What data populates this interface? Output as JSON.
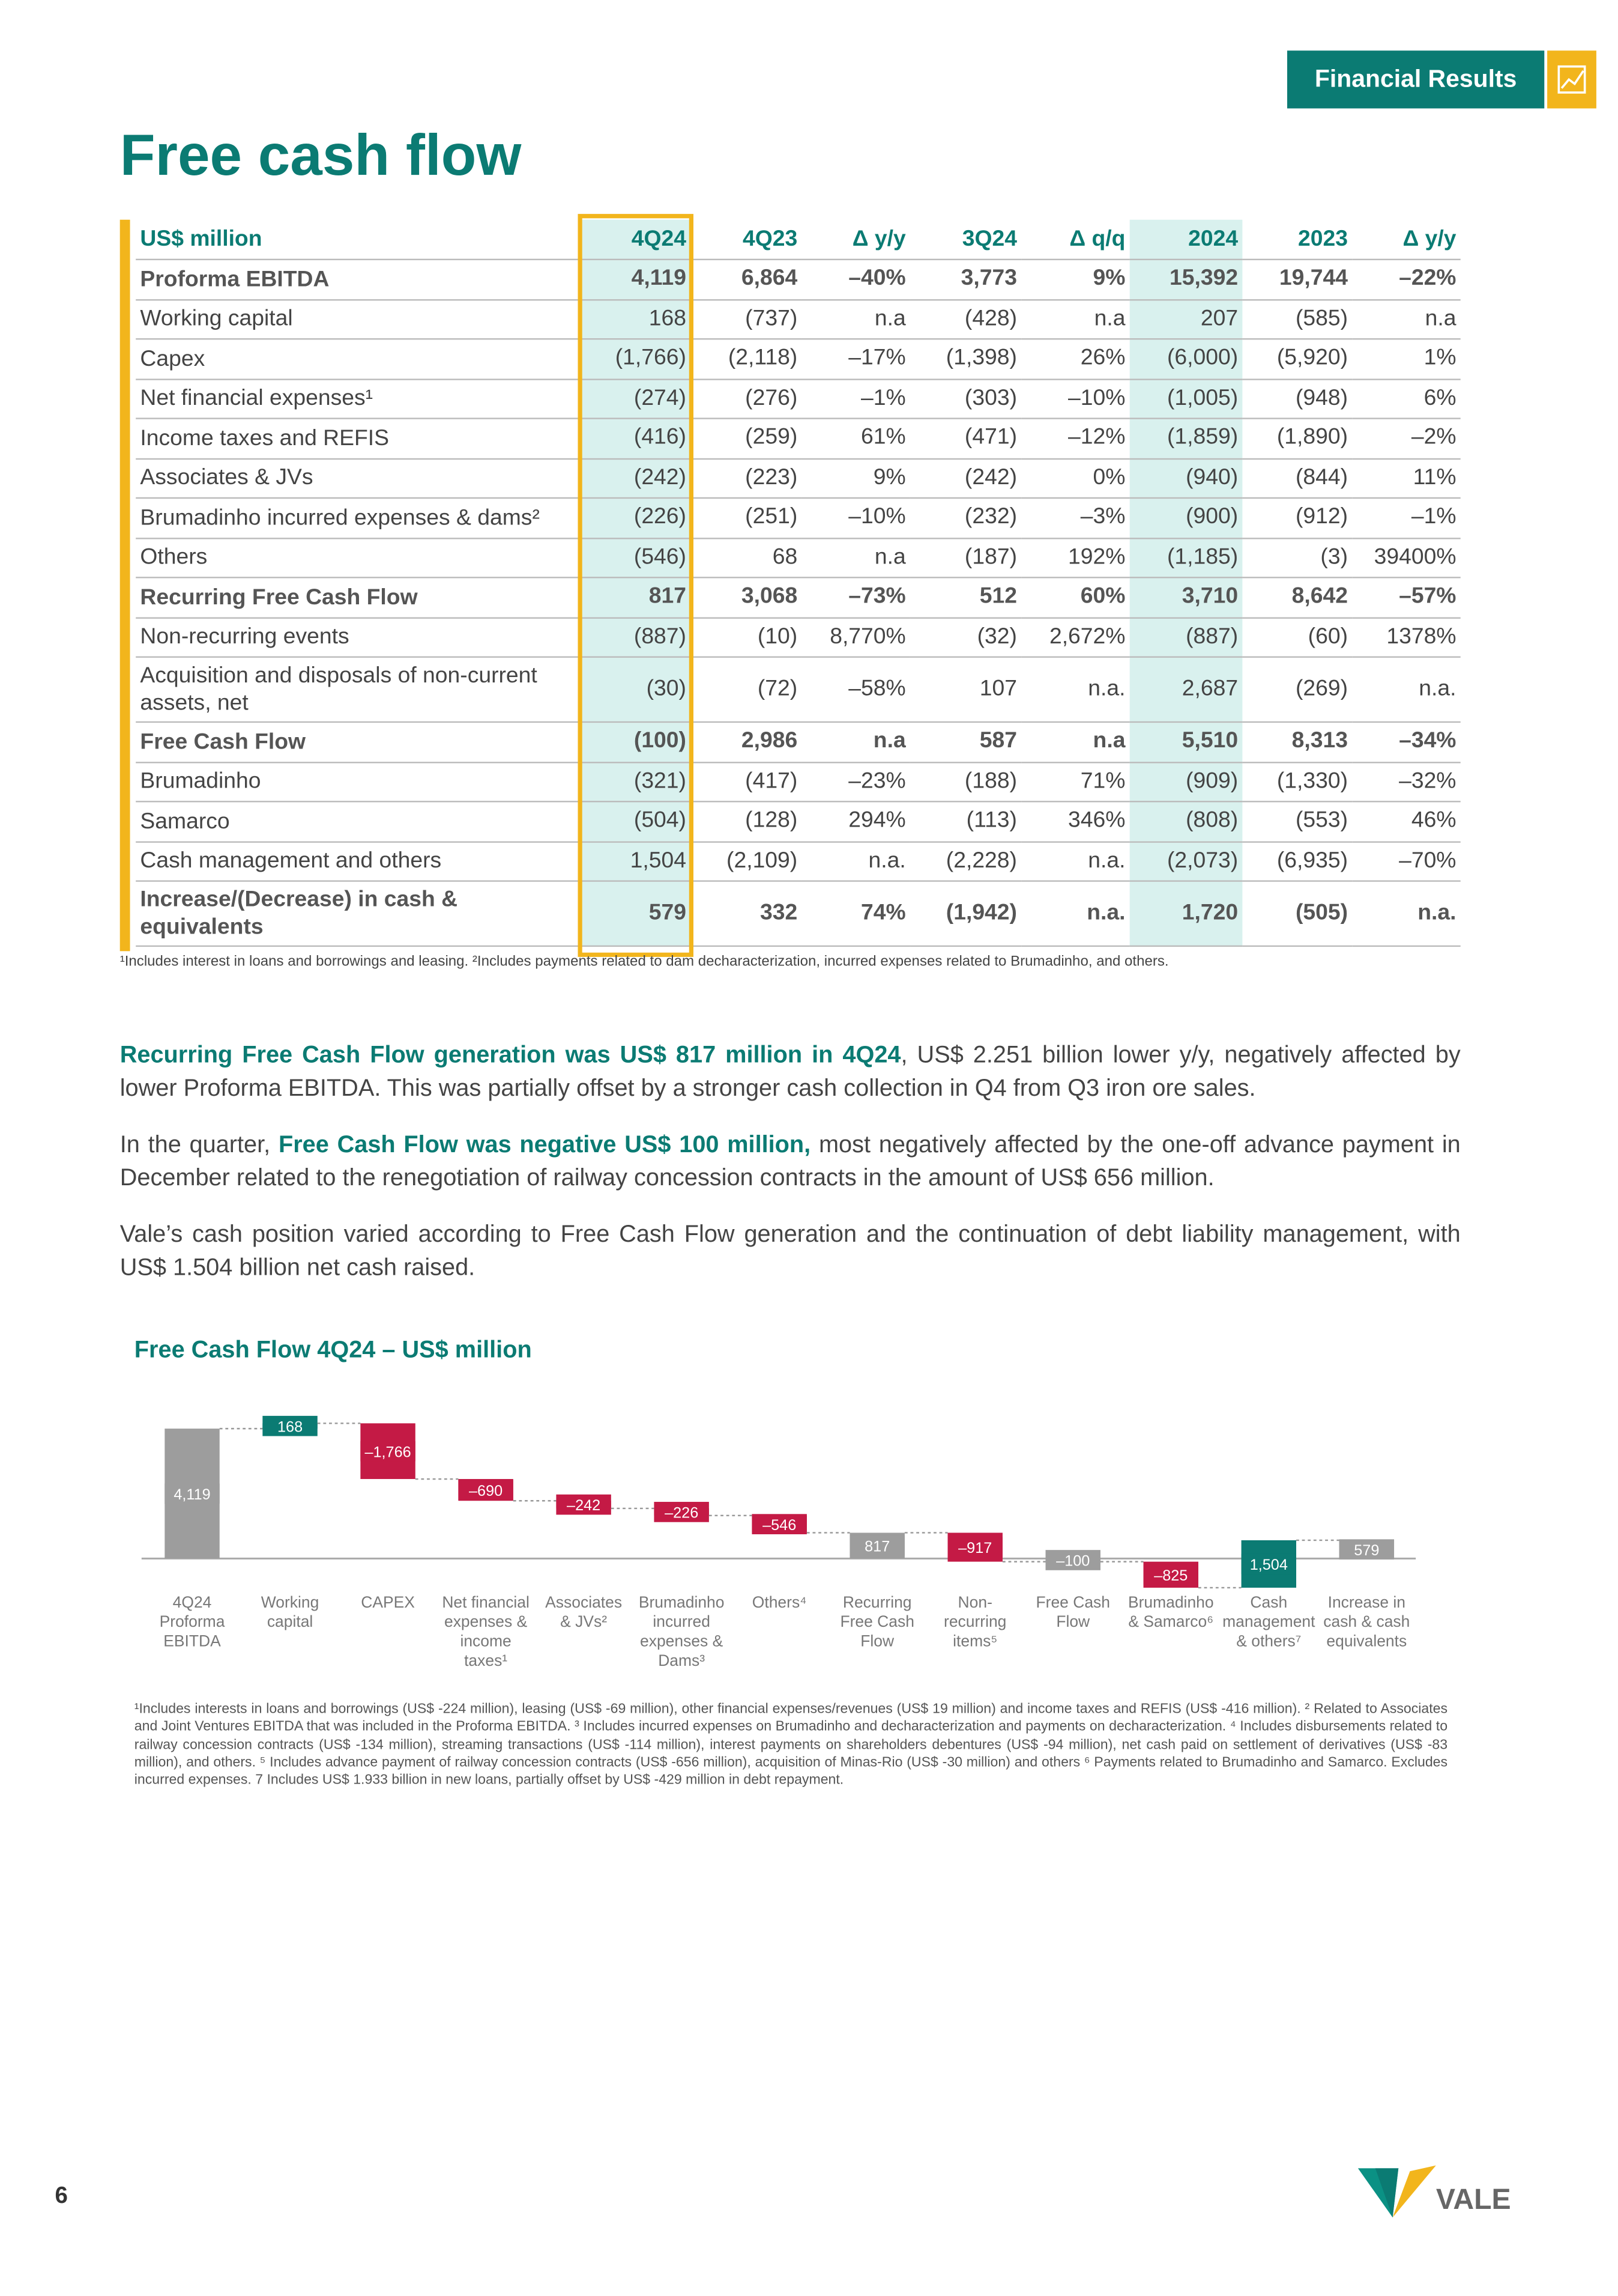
{
  "header": {
    "section": "Financial Results"
  },
  "title": "Free cash flow",
  "table": {
    "header": [
      "US$ million",
      "4Q24",
      "4Q23",
      "Δ y/y",
      "3Q24",
      "Δ q/q",
      "2024",
      "2023",
      "Δ y/y"
    ],
    "rows": [
      {
        "label": "Proforma EBITDA",
        "bold": true,
        "cells": [
          "4,119",
          "6,864",
          "–40%",
          "3,773",
          "9%",
          "15,392",
          "19,744",
          "–22%"
        ]
      },
      {
        "label": "Working capital",
        "cells": [
          "168",
          "(737)",
          "n.a",
          "(428)",
          "n.a",
          "207",
          "(585)",
          "n.a"
        ]
      },
      {
        "label": "Capex",
        "cells": [
          "(1,766)",
          "(2,118)",
          "–17%",
          "(1,398)",
          "26%",
          "(6,000)",
          "(5,920)",
          "1%"
        ]
      },
      {
        "label": "Net financial expenses¹",
        "cells": [
          "(274)",
          "(276)",
          "–1%",
          "(303)",
          "–10%",
          "(1,005)",
          "(948)",
          "6%"
        ]
      },
      {
        "label": "Income taxes and REFIS",
        "cells": [
          "(416)",
          "(259)",
          "61%",
          "(471)",
          "–12%",
          "(1,859)",
          "(1,890)",
          "–2%"
        ]
      },
      {
        "label": "Associates & JVs",
        "cells": [
          "(242)",
          "(223)",
          "9%",
          "(242)",
          "0%",
          "(940)",
          "(844)",
          "11%"
        ]
      },
      {
        "label": "Brumadinho incurred expenses & dams²",
        "cells": [
          "(226)",
          "(251)",
          "–10%",
          "(232)",
          "–3%",
          "(900)",
          "(912)",
          "–1%"
        ]
      },
      {
        "label": "Others",
        "cells": [
          "(546)",
          "68",
          "n.a",
          "(187)",
          "192%",
          "(1,185)",
          "(3)",
          "39400%"
        ]
      },
      {
        "label": "Recurring Free Cash Flow",
        "bold": true,
        "cells": [
          "817",
          "3,068",
          "–73%",
          "512",
          "60%",
          "3,710",
          "8,642",
          "–57%"
        ]
      },
      {
        "label": "Non-recurring events",
        "cells": [
          "(887)",
          "(10)",
          "8,770%",
          "(32)",
          "2,672%",
          "(887)",
          "(60)",
          "1378%"
        ]
      },
      {
        "label": "Acquisition and disposals of non-current assets, net",
        "cells": [
          "(30)",
          "(72)",
          "–58%",
          "107",
          "n.a.",
          "2,687",
          "(269)",
          "n.a."
        ]
      },
      {
        "label": "Free Cash Flow",
        "bold": true,
        "cells": [
          "(100)",
          "2,986",
          "n.a",
          "587",
          "n.a",
          "5,510",
          "8,313",
          "–34%"
        ]
      },
      {
        "label": "Brumadinho",
        "cells": [
          "(321)",
          "(417)",
          "–23%",
          "(188)",
          "71%",
          "(909)",
          "(1,330)",
          "–32%"
        ]
      },
      {
        "label": "Samarco",
        "cells": [
          "(504)",
          "(128)",
          "294%",
          "(113)",
          "346%",
          "(808)",
          "(553)",
          "46%"
        ]
      },
      {
        "label": "Cash management and others",
        "cells": [
          "1,504",
          "(2,109)",
          "n.a.",
          "(2,228)",
          "n.a.",
          "(2,073)",
          "(6,935)",
          "–70%"
        ]
      },
      {
        "label": "Increase/(Decrease) in cash & equivalents",
        "bold": true,
        "cells": [
          "579",
          "332",
          "74%",
          "(1,942)",
          "n.a.",
          "1,720",
          "(505)",
          "n.a."
        ]
      }
    ],
    "footnote": "¹Includes interest in loans and borrowings and leasing. ²Includes payments related to dam decharacterization, incurred expenses related to Brumadinho, and others."
  },
  "paragraphs": [
    [
      {
        "text": "Recurring Free Cash Flow generation was US$ 817 million in 4Q24",
        "bold": true
      },
      {
        "text": ", US$ 2.251 billion lower y/y, negatively affected by lower Proforma EBITDA. This was partially offset by a stronger cash collection in Q4 from Q3 iron ore sales."
      }
    ],
    [
      {
        "text": "In the quarter, "
      },
      {
        "text": "Free Cash Flow was negative US$ 100 million,",
        "bold": true
      },
      {
        "text": " most negatively affected by the one-off advance payment in December related to the renegotiation of railway concession contracts in the amount of US$ 656 million."
      }
    ],
    [
      {
        "text": "Vale’s cash position varied according to Free Cash Flow generation and the continuation of debt liability management, with US$ 1.504 billion net cash raised."
      }
    ]
  ],
  "chart_data": {
    "type": "waterfall",
    "title": "Free Cash Flow 4Q24 – US$ million",
    "categories": [
      [
        "4Q24",
        "Proforma",
        "EBITDA"
      ],
      [
        "Working",
        "capital"
      ],
      [
        "CAPEX"
      ],
      [
        "Net financial",
        "expenses &",
        "income",
        "taxes¹"
      ],
      [
        "Associates",
        "& JVs²"
      ],
      [
        "Brumadinho",
        "incurred",
        "expenses &",
        "Dams³"
      ],
      [
        "Others⁴"
      ],
      [
        "Recurring",
        "Free Cash",
        "Flow"
      ],
      [
        "Non-",
        "recurring",
        "items⁵"
      ],
      [
        "Free Cash",
        "Flow"
      ],
      [
        "Brumadinho",
        "& Samarco⁶"
      ],
      [
        "Cash",
        "management",
        "& others⁷"
      ],
      [
        "Increase in",
        "cash & cash",
        "equivalents"
      ]
    ],
    "values": [
      4119,
      168,
      -1766,
      -690,
      -242,
      -226,
      -546,
      817,
      -917,
      -100,
      -825,
      1504,
      579
    ],
    "value_labels": [
      "4,119",
      "168",
      "–1,766",
      "–690",
      "–242",
      "–226",
      "–546",
      "817",
      "–917",
      "–100",
      "–825",
      "1,504",
      "579"
    ],
    "ylim": [
      -1000,
      4500
    ],
    "positive_color": "#0b7b73",
    "negative_color": "#c41a45",
    "total_color": "#9d9d9d",
    "footnote": "¹Includes interests in loans and borrowings (US$ -224 million), leasing (US$ -69 million), other financial expenses/revenues (US$ 19 million) and income taxes and REFIS (US$ -416 million). ² Related to Associates and Joint Ventures EBITDA that was included in the Proforma EBITDA. ³ Includes incurred expenses on Brumadinho and decharacterization and payments on decharacterization. ⁴ Includes disbursements related to railway concession contracts (US$ -134 million), streaming transactions (US$ -114 million), interest payments on shareholders debentures (US$ -94 million), net cash paid on settlement of derivatives (US$ -83 million), and others. ⁵ Includes advance payment of railway concession contracts (US$ -656 million), acquisition of Minas-Rio (US$ -30 million) and others ⁶ Payments related to Brumadinho and Samarco. Excludes incurred expenses. 7 Includes US$ 1.933 billion in new loans, partially offset by US$ -429 million in debt repayment."
  },
  "page_number": "6",
  "logo": "VALE"
}
